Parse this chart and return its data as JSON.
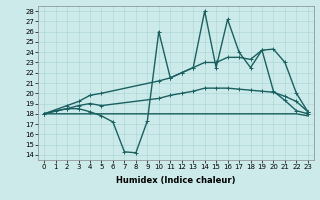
{
  "xlabel": "Humidex (Indice chaleur)",
  "background_color": "#cdeaea",
  "grid_color": "#a8d4d4",
  "line_color": "#1a6060",
  "xlim": [
    -0.5,
    23.5
  ],
  "ylim": [
    13.5,
    28.5
  ],
  "xticks": [
    0,
    1,
    2,
    3,
    4,
    5,
    6,
    7,
    8,
    9,
    10,
    11,
    12,
    13,
    14,
    15,
    16,
    17,
    18,
    19,
    20,
    21,
    22,
    23
  ],
  "yticks": [
    14,
    15,
    16,
    17,
    18,
    19,
    20,
    21,
    22,
    23,
    24,
    25,
    26,
    27,
    28
  ],
  "line_flat_x": [
    0,
    1,
    2,
    3,
    4,
    5,
    6,
    7,
    8,
    9,
    10,
    11,
    12,
    13,
    14,
    15,
    16,
    17,
    18,
    19,
    20,
    21,
    22,
    23
  ],
  "line_flat_y": [
    18,
    18,
    18,
    18,
    18,
    18,
    18,
    18,
    18,
    18,
    18,
    18,
    18,
    18,
    18,
    18,
    18,
    18,
    18,
    18,
    18,
    18,
    18,
    17.8
  ],
  "line_zigzag_x": [
    0,
    1,
    2,
    3,
    4,
    5,
    6,
    7,
    8,
    9,
    10,
    11,
    12,
    13,
    14,
    15,
    16,
    17,
    18,
    19,
    20,
    21,
    22,
    23
  ],
  "line_zigzag_y": [
    18,
    18.3,
    18.5,
    18.5,
    18.2,
    17.8,
    17.2,
    14.3,
    14.2,
    17.3,
    26.0,
    21.5,
    22.0,
    22.5,
    28.0,
    22.5,
    27.2,
    24.0,
    22.5,
    24.2,
    20.2,
    19.3,
    18.3,
    18.0
  ],
  "line_mid_x": [
    0,
    2,
    3,
    4,
    5,
    10,
    11,
    12,
    13,
    14,
    15,
    16,
    17,
    18,
    19,
    20,
    21,
    22,
    23
  ],
  "line_mid_y": [
    18,
    18.5,
    18.8,
    19.0,
    18.8,
    19.5,
    19.8,
    20.0,
    20.2,
    20.5,
    20.5,
    20.5,
    20.4,
    20.3,
    20.2,
    20.1,
    19.7,
    19.2,
    18.2
  ],
  "line_upper_x": [
    0,
    2,
    3,
    4,
    5,
    10,
    11,
    12,
    13,
    14,
    15,
    16,
    17,
    18,
    19,
    20,
    21,
    22,
    23
  ],
  "line_upper_y": [
    18,
    18.8,
    19.2,
    19.8,
    20.0,
    21.2,
    21.5,
    22.0,
    22.5,
    23.0,
    23.0,
    23.5,
    23.5,
    23.3,
    24.2,
    24.3,
    23.0,
    20.0,
    18.2
  ]
}
